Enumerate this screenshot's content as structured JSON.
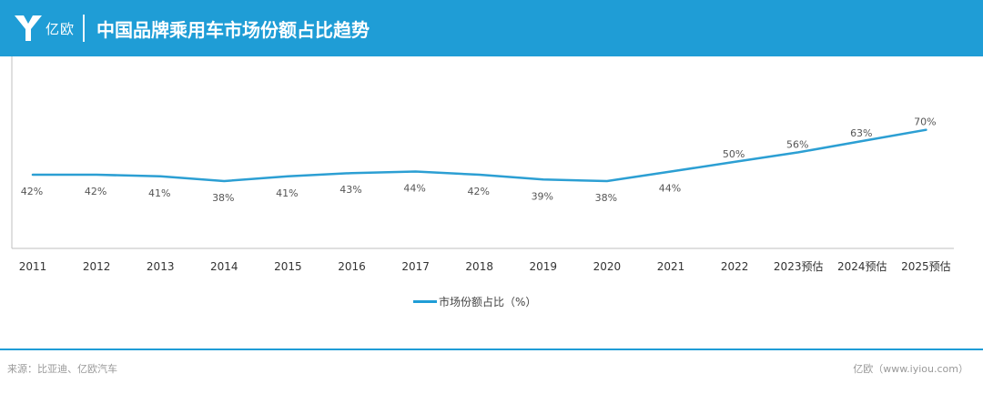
{
  "header": {
    "logo_text": "亿欧",
    "title": "中国品牌乘用车市场份额占比趋势"
  },
  "footer": {
    "source": "来源：比亚迪、亿欧汽车",
    "credit": "亿欧（www.iyiou.com）"
  },
  "colors": {
    "accent": "#1f9dd6",
    "line": "#2c9fd3"
  },
  "chart_data": {
    "type": "line",
    "categories": [
      "2011",
      "2012",
      "2013",
      "2014",
      "2015",
      "2016",
      "2017",
      "2018",
      "2019",
      "2020",
      "2021",
      "2022",
      "2023预估",
      "2024预估",
      "2025预估"
    ],
    "series": [
      {
        "name": "市场份额占比（%）",
        "values": [
          42,
          42,
          41,
          38,
          41,
          43,
          44,
          42,
          39,
          38,
          44,
          50,
          56,
          63,
          70
        ],
        "labels": [
          "42%",
          "42%",
          "41%",
          "38%",
          "41%",
          "43%",
          "44%",
          "42%",
          "39%",
          "38%",
          "44%",
          "50%",
          "56%",
          "63%",
          "70%"
        ]
      }
    ],
    "xlabel": "",
    "ylabel": "",
    "grid": false,
    "legend": "bottom-center"
  }
}
